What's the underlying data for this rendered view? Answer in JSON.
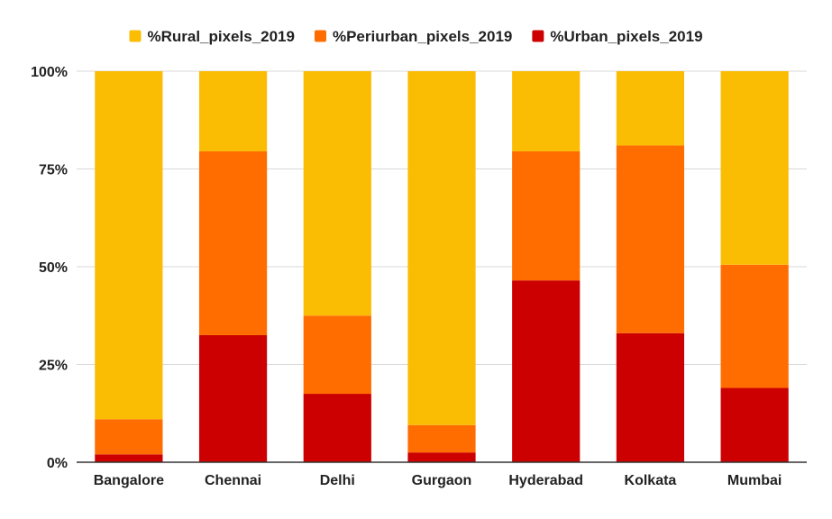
{
  "chart_data": {
    "type": "bar",
    "stacked": "percent",
    "categories": [
      "Bangalore",
      "Chennai",
      "Delhi",
      "Gurgaon",
      "Hyderabad",
      "Kolkata",
      "Mumbai"
    ],
    "series": [
      {
        "name": "%Urban_pixels_2019",
        "color": "#cc0000",
        "values": [
          2,
          32.5,
          17.5,
          2.5,
          46.5,
          33,
          19
        ]
      },
      {
        "name": "%Periurban_pixels_2019",
        "color": "#ff6d01",
        "values": [
          9,
          47,
          20,
          7,
          33,
          48,
          31.5
        ]
      },
      {
        "name": "%Rural_pixels_2019",
        "color": "#fbbc04",
        "values": [
          89,
          20.5,
          62.5,
          90.5,
          20.5,
          19,
          49.5
        ]
      }
    ],
    "legend_order": [
      "%Rural_pixels_2019",
      "%Periurban_pixels_2019",
      "%Urban_pixels_2019"
    ],
    "legend_position": "top",
    "ylim": [
      0,
      100
    ],
    "yticks": [
      "0%",
      "25%",
      "50%",
      "75%",
      "100%"
    ],
    "grid": true,
    "title": "",
    "xlabel": "",
    "ylabel": ""
  }
}
